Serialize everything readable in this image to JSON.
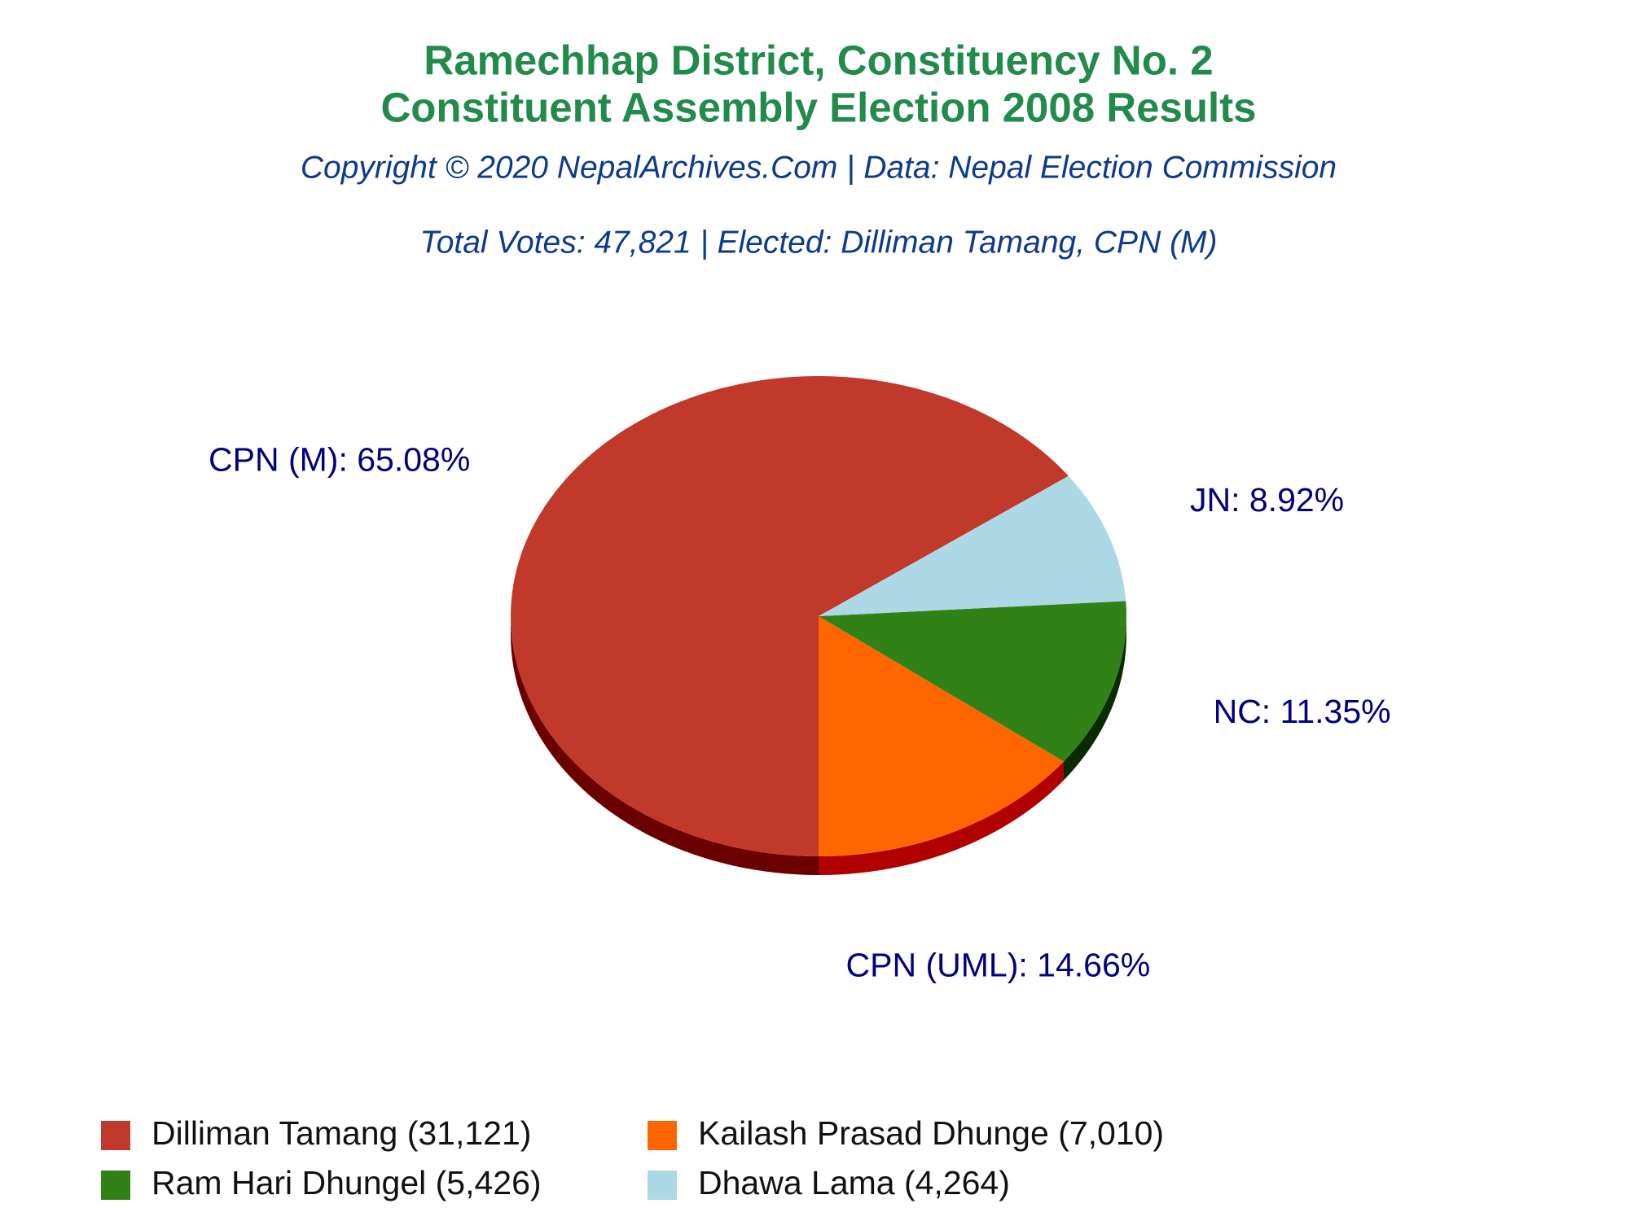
{
  "chart_data": {
    "type": "pie",
    "title": [
      "Ramechhap District, Constituency No. 2",
      "Constituent Assembly Election 2008 Results"
    ],
    "subtitle": "Copyright © 2020 NepalArchives.Com | Data: Nepal Election Commission",
    "note": "Total Votes: 47,821 | Elected: Dilliman Tamang, CPN (M)",
    "categories": [
      "Dilliman Tamang (31,121)",
      "Kailash Prasad Dhunge (7,010)",
      "Ram Hari Dhungel (5,426)",
      "Dhawa Lama (4,264)"
    ],
    "values": [
      65.08,
      14.66,
      11.35,
      8.92
    ],
    "value_labels": [
      "CPN (M): 65.08%",
      "CPN (UML): 14.66%",
      "NC: 11.35%",
      "JN: 8.92%"
    ],
    "colors": [
      "#c0392b",
      "#ff6600",
      "#318216",
      "#add8e6"
    ],
    "side_colors": [
      "#6b0000",
      "#b00000",
      "#0a2a00",
      "#5d8a99"
    ]
  }
}
